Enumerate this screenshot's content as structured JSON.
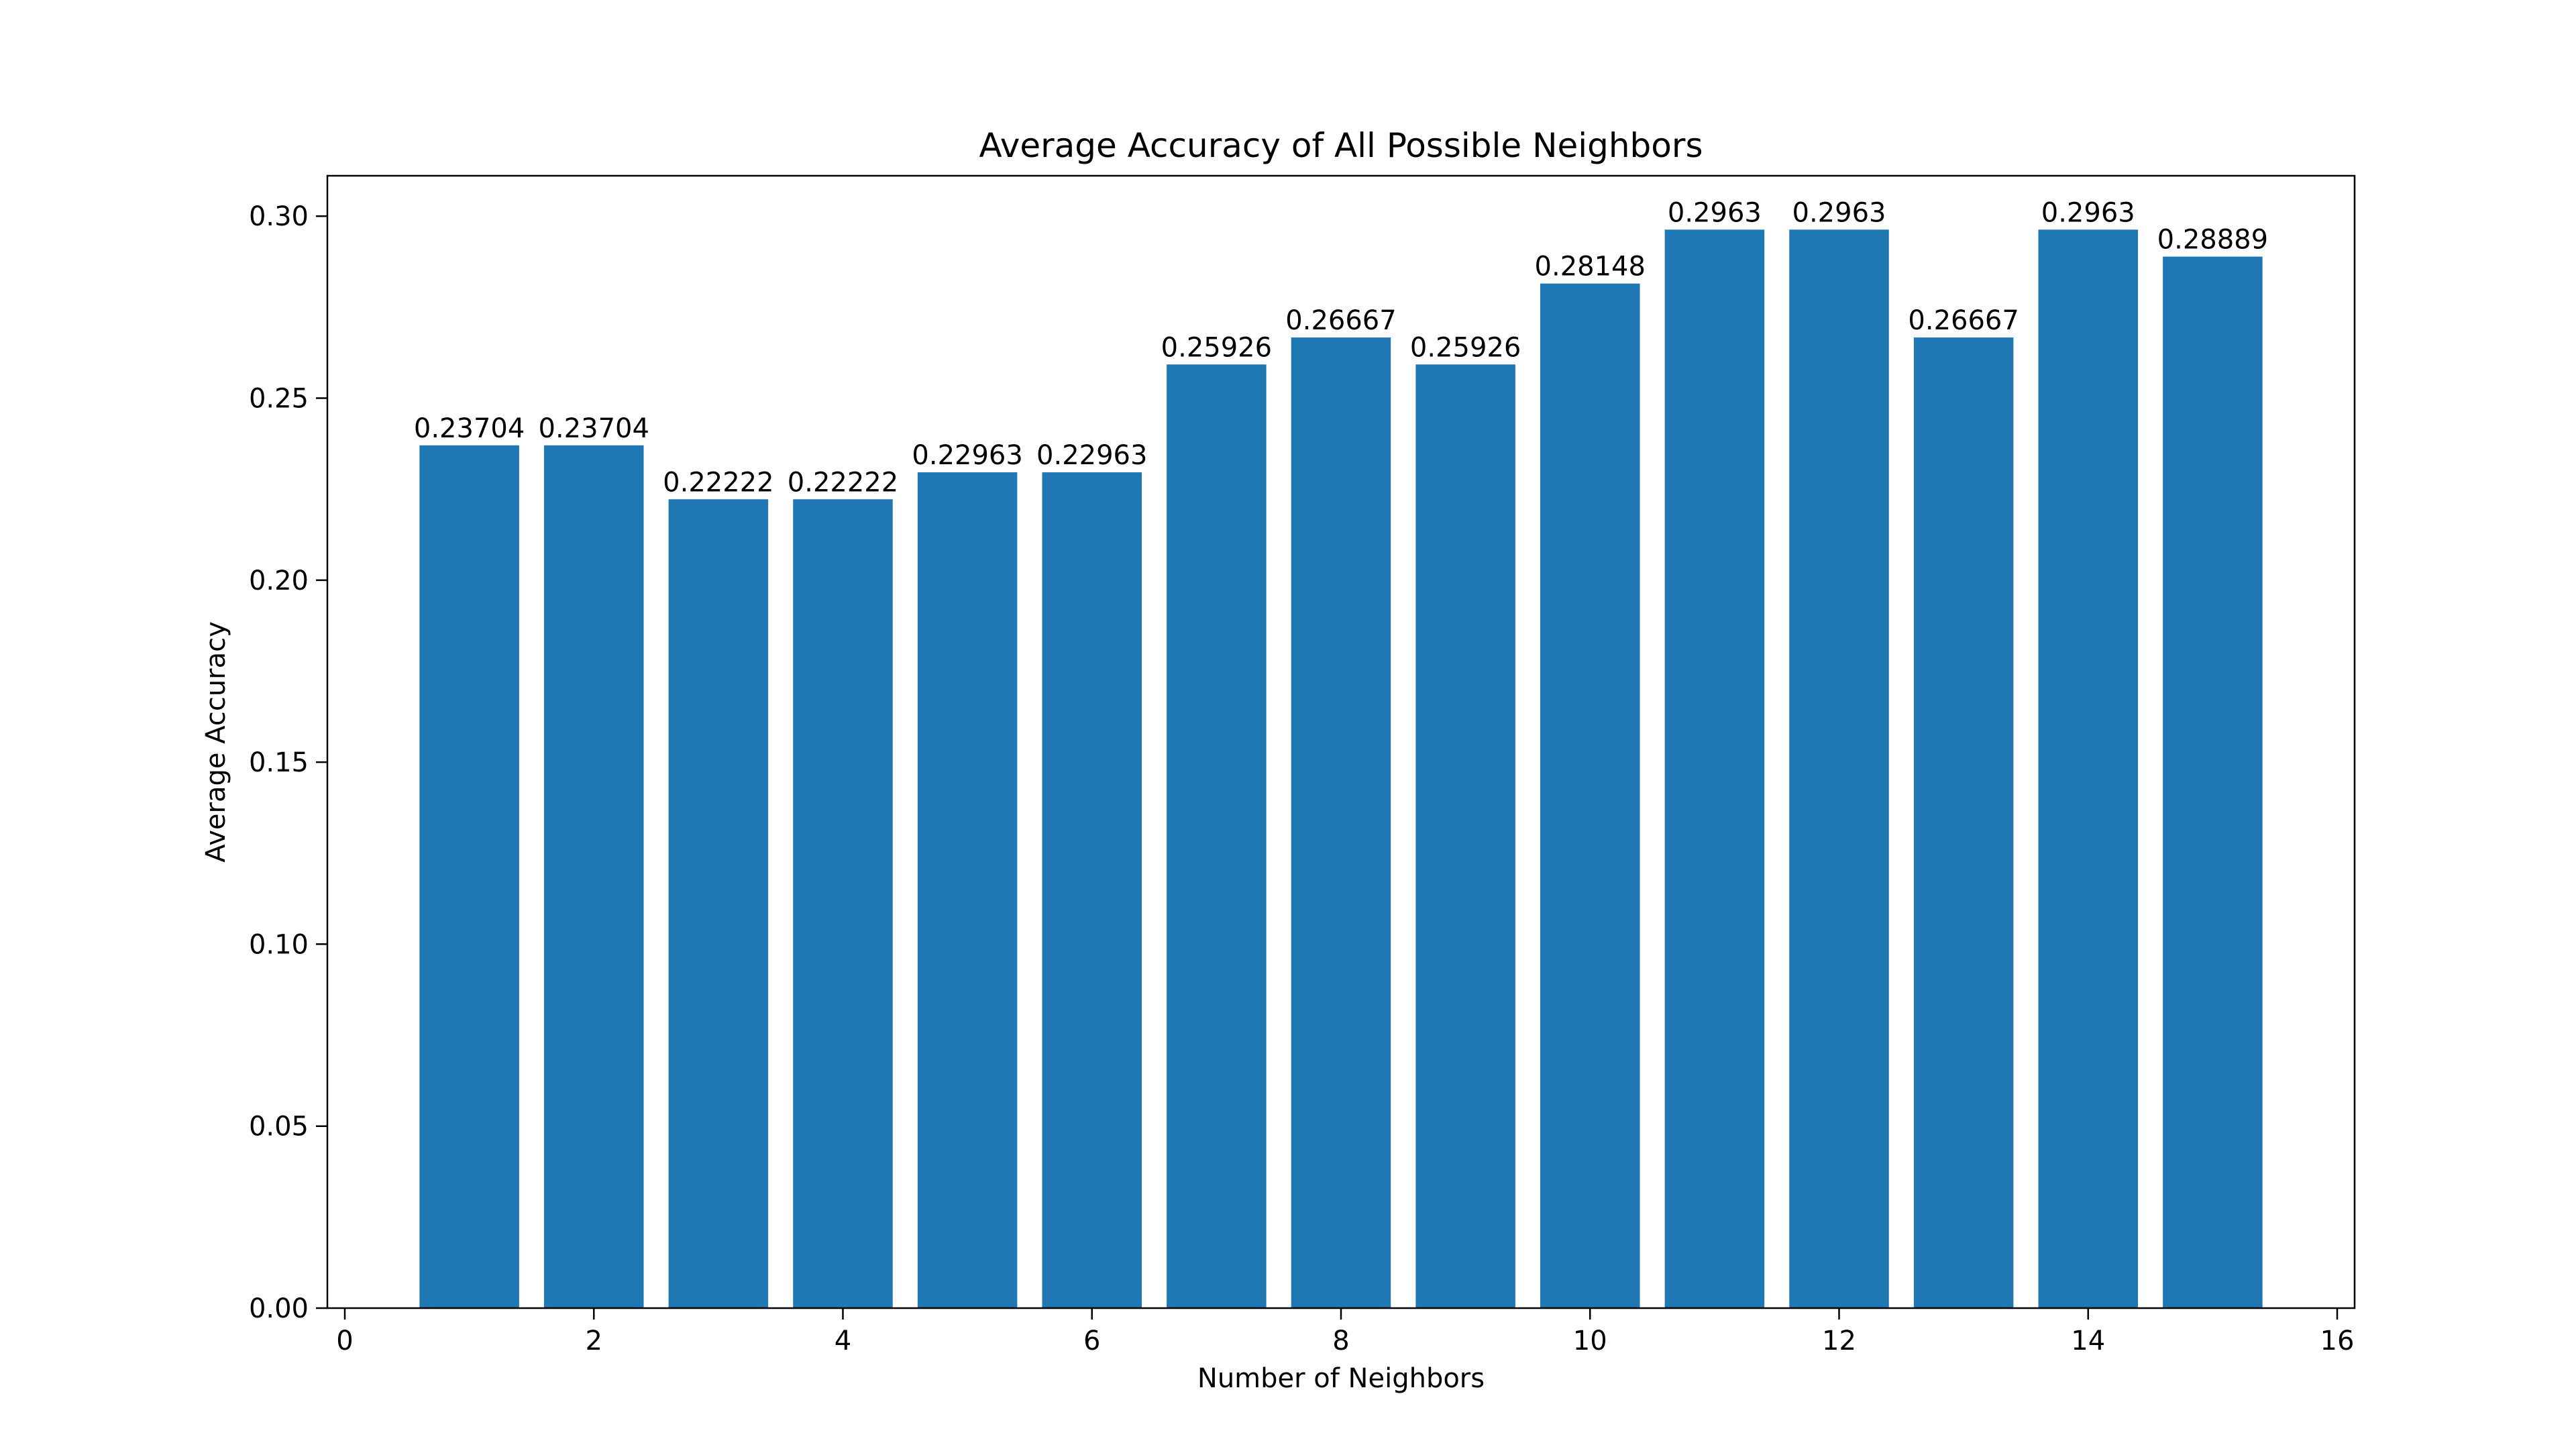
{
  "chart_data": {
    "type": "bar",
    "title": "Average Accuracy of All Possible Neighbors",
    "xlabel": "Number of Neighbors",
    "ylabel": "Average Accuracy",
    "x": [
      1,
      2,
      3,
      4,
      5,
      6,
      7,
      8,
      9,
      10,
      11,
      12,
      13,
      14,
      15
    ],
    "values": [
      0.23704,
      0.23704,
      0.22222,
      0.22222,
      0.22963,
      0.22963,
      0.25926,
      0.26667,
      0.25926,
      0.28148,
      0.2963,
      0.2963,
      0.26667,
      0.2963,
      0.28889
    ],
    "data_labels": [
      "0.23704",
      "0.23704",
      "0.22222",
      "0.22222",
      "0.22963",
      "0.22963",
      "0.25926",
      "0.26667",
      "0.25926",
      "0.28148",
      "0.2963",
      "0.2963",
      "0.26667",
      "0.2963",
      "0.28889"
    ],
    "xlim": [
      -0.14,
      16.14
    ],
    "ylim": [
      0,
      0.3111
    ],
    "x_ticks": [
      0,
      2,
      4,
      6,
      8,
      10,
      12,
      14,
      16
    ],
    "x_tick_labels": [
      "0",
      "2",
      "4",
      "6",
      "8",
      "10",
      "12",
      "14",
      "16"
    ],
    "y_ticks": [
      0,
      0.05,
      0.1,
      0.15,
      0.2,
      0.25,
      0.3
    ],
    "y_tick_labels": [
      "0.00",
      "0.05",
      "0.10",
      "0.15",
      "0.20",
      "0.25",
      "0.30"
    ],
    "bar_color": "#1f77b4",
    "grid": false,
    "legend": "none"
  }
}
